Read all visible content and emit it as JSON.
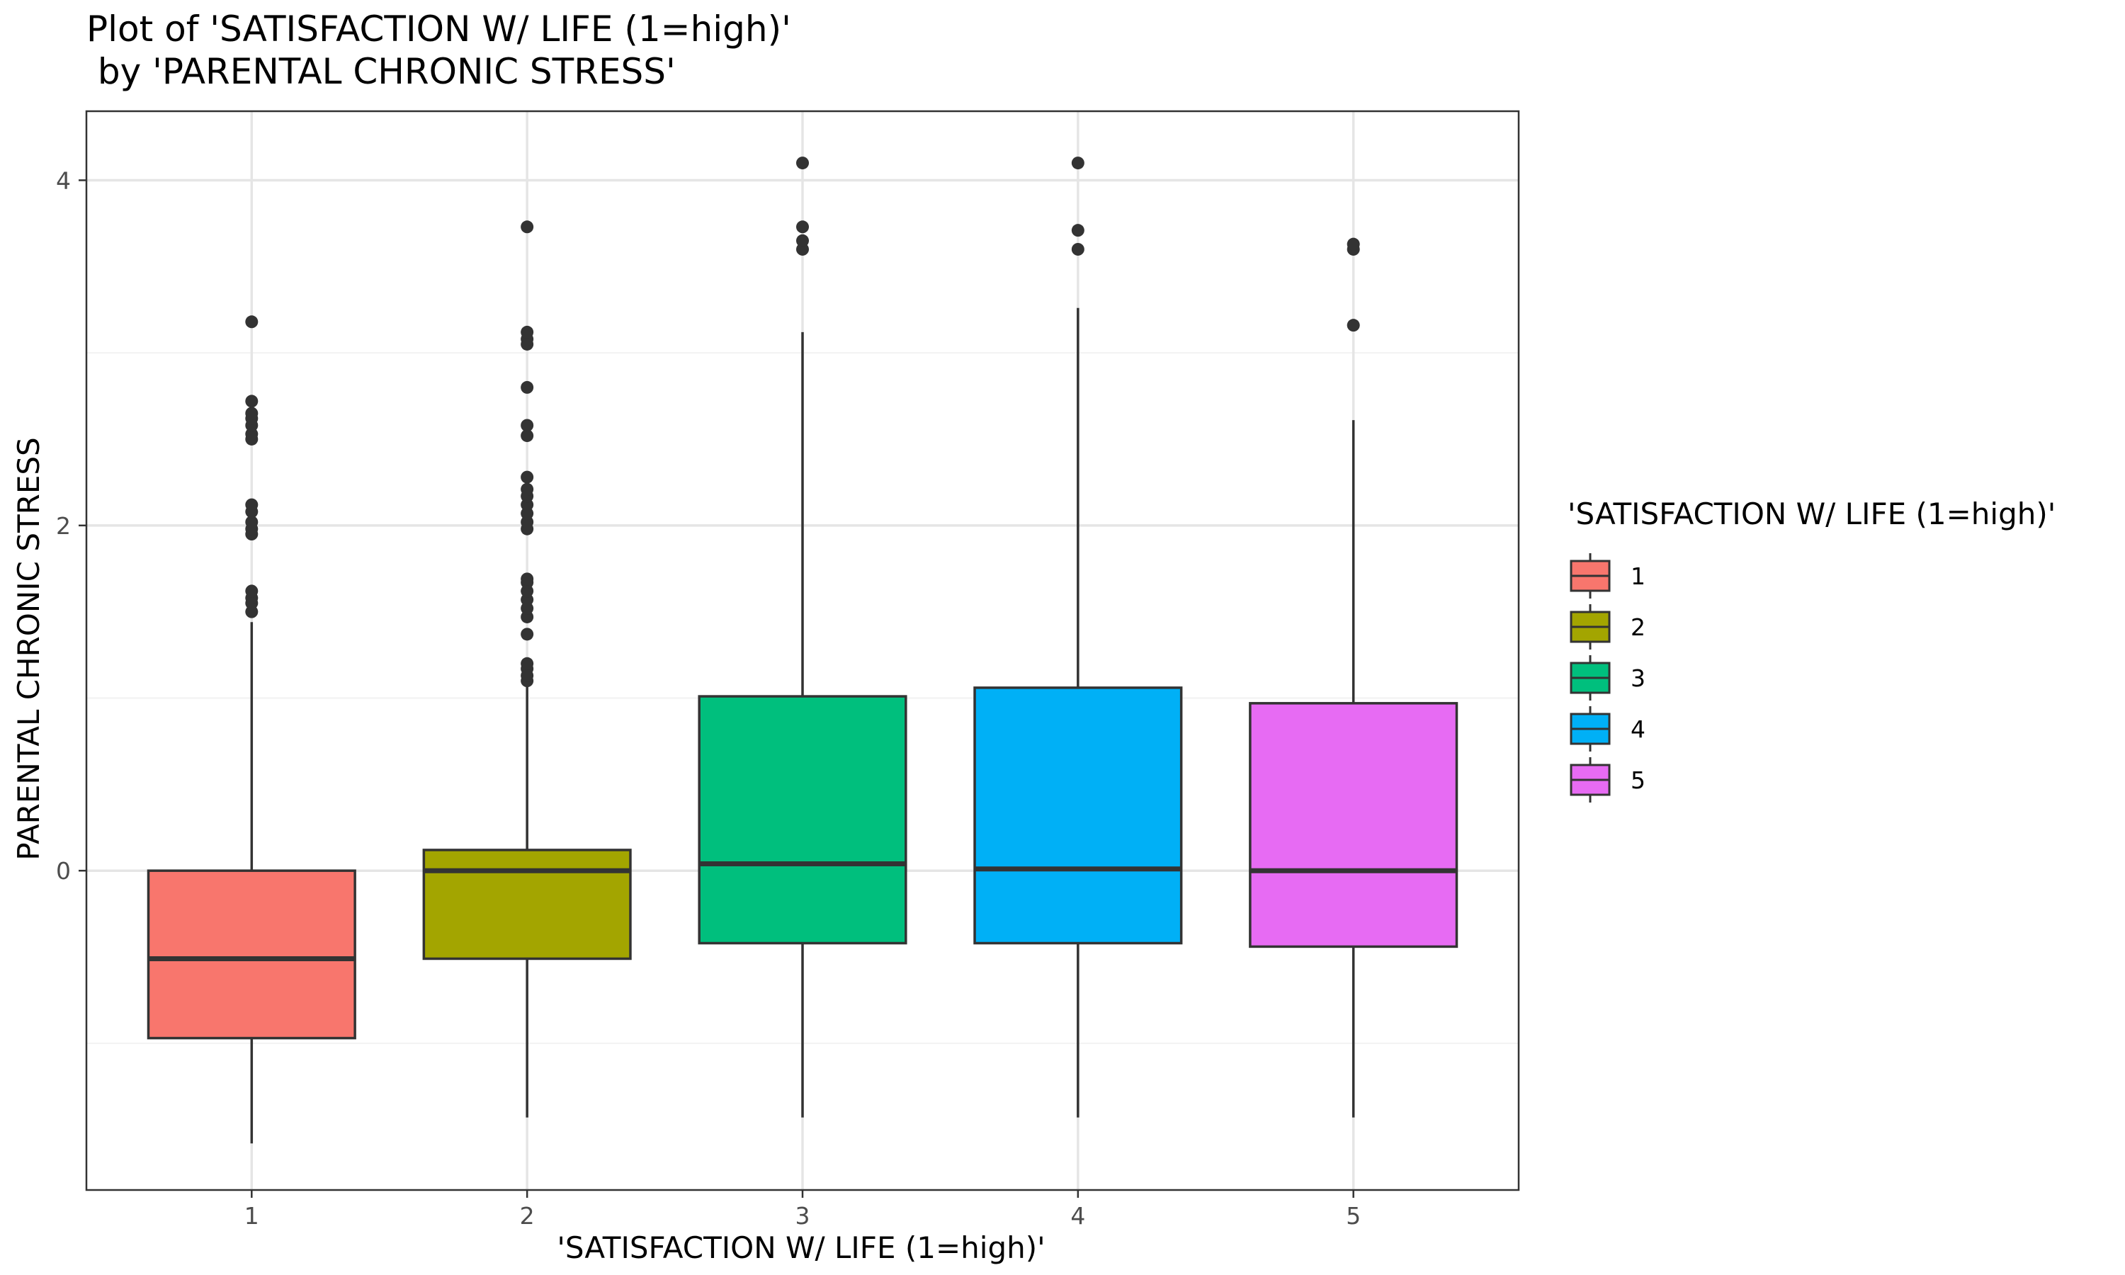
{
  "chart_data": {
    "type": "boxplot",
    "title_lines": [
      "Plot of 'SATISFACTION W/ LIFE (1=high)'",
      " by 'PARENTAL CHRONIC STRESS'"
    ],
    "xlabel": "'SATISFACTION W/ LIFE (1=high)'",
    "ylabel": "PARENTAL CHRONIC STRESS",
    "ylim": [
      -1.85,
      4.4
    ],
    "yticks": [
      0,
      2,
      4
    ],
    "yminor": [
      -1,
      1,
      3
    ],
    "categories": [
      "1",
      "2",
      "3",
      "4",
      "5"
    ],
    "grid": true,
    "legend": {
      "title": "'SATISFACTION W/ LIFE (1=high)'",
      "position": "right"
    },
    "boxes": [
      {
        "category": "1",
        "color": "#F8766D",
        "whisker_low": -1.58,
        "q1": -0.97,
        "median": -0.51,
        "q3": 0.0,
        "whisker_high": 1.44,
        "outliers": [
          1.5,
          1.55,
          1.58,
          1.62,
          1.95,
          1.98,
          2.02,
          2.08,
          2.12,
          2.5,
          2.53,
          2.58,
          2.62,
          2.65,
          2.72,
          3.18
        ]
      },
      {
        "category": "2",
        "color": "#A3A500",
        "whisker_low": -1.43,
        "q1": -0.51,
        "median": 0.0,
        "q3": 0.12,
        "whisker_high": 1.07,
        "outliers": [
          1.1,
          1.13,
          1.17,
          1.2,
          1.37,
          1.47,
          1.52,
          1.57,
          1.62,
          1.67,
          1.69,
          1.98,
          2.02,
          2.07,
          2.12,
          2.17,
          2.21,
          2.28,
          2.52,
          2.58,
          2.8,
          3.05,
          3.08,
          3.12,
          3.73
        ]
      },
      {
        "category": "3",
        "color": "#00BF7D",
        "whisker_low": -1.43,
        "q1": -0.42,
        "median": 0.04,
        "q3": 1.01,
        "whisker_high": 3.12,
        "outliers": [
          3.6,
          3.65,
          3.73,
          4.1
        ]
      },
      {
        "category": "4",
        "color": "#00B0F6",
        "whisker_low": -1.43,
        "q1": -0.42,
        "median": 0.01,
        "q3": 1.06,
        "whisker_high": 3.26,
        "outliers": [
          3.6,
          3.71,
          4.1
        ]
      },
      {
        "category": "5",
        "color": "#E76BF3",
        "whisker_low": -1.43,
        "q1": -0.44,
        "median": 0.0,
        "q3": 0.97,
        "whisker_high": 2.61,
        "outliers": [
          3.16,
          3.6,
          3.63
        ]
      }
    ]
  }
}
